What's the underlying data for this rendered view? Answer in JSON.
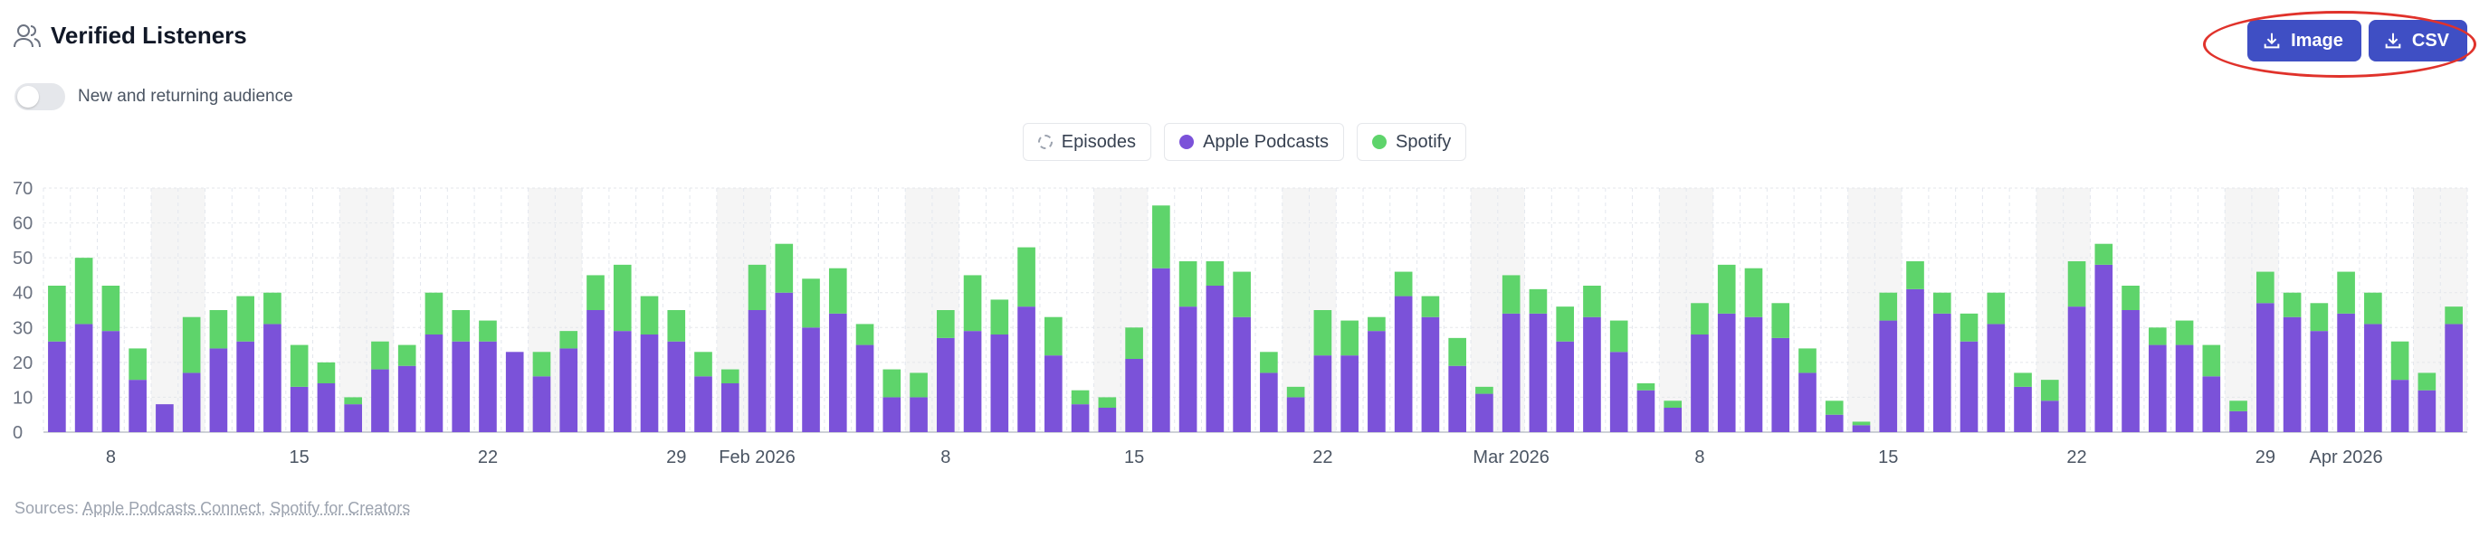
{
  "header": {
    "title": "Verified Listeners",
    "icon": "users-icon"
  },
  "actions": {
    "image_label": "Image",
    "csv_label": "CSV"
  },
  "toggle": {
    "label": "New and returning audience",
    "on": false
  },
  "legend": [
    {
      "label": "Episodes",
      "style": "dashed"
    },
    {
      "label": "Apple Podcasts",
      "color": "#7b52d9"
    },
    {
      "label": "Spotify",
      "color": "#5ed46b"
    }
  ],
  "sources": {
    "prefix": "Sources:",
    "links": [
      "Apple Podcasts Connect",
      "Spotify for Creators"
    ]
  },
  "colors": {
    "apple": "#7b52d9",
    "spotify": "#5ed46b",
    "weekend": "#f5f5f5",
    "accent": "#3f4fc4"
  },
  "chart_data": {
    "type": "bar",
    "stacked": true,
    "ylim": [
      0,
      70
    ],
    "yticks": [
      0,
      10,
      20,
      30,
      40,
      50,
      60,
      70
    ],
    "x_start": "2026-01-06",
    "x_ticks": [
      {
        "index": 2,
        "label": "8"
      },
      {
        "index": 9,
        "label": "15"
      },
      {
        "index": 16,
        "label": "22"
      },
      {
        "index": 23,
        "label": "29"
      },
      {
        "index": 26,
        "label": "Feb 2026"
      },
      {
        "index": 33,
        "label": "8"
      },
      {
        "index": 40,
        "label": "15"
      },
      {
        "index": 47,
        "label": "22"
      },
      {
        "index": 54,
        "label": "Mar 2026"
      },
      {
        "index": 61,
        "label": "8"
      },
      {
        "index": 68,
        "label": "15"
      },
      {
        "index": 75,
        "label": "22"
      },
      {
        "index": 82,
        "label": "29"
      },
      {
        "index": 85,
        "label": "Apr 2026"
      }
    ],
    "series": [
      {
        "name": "Apple Podcasts",
        "values": [
          26,
          31,
          29,
          15,
          8,
          17,
          24,
          26,
          31,
          13,
          14,
          8,
          18,
          19,
          28,
          26,
          26,
          23,
          16,
          24,
          35,
          29,
          28,
          26,
          16,
          14,
          35,
          40,
          30,
          34,
          25,
          10,
          10,
          27,
          29,
          28,
          36,
          22,
          8,
          7,
          21,
          47,
          36,
          42,
          33,
          17,
          10,
          22,
          22,
          29,
          39,
          33,
          19,
          11,
          34,
          34,
          26,
          33,
          23,
          12,
          7,
          28,
          34,
          33,
          27,
          17,
          5,
          2,
          32,
          41,
          34,
          26,
          31,
          13,
          9,
          36,
          48,
          35,
          25,
          25,
          16,
          6,
          37,
          33,
          29,
          34,
          31,
          15,
          12,
          31
        ]
      },
      {
        "name": "Spotify",
        "values": [
          16,
          19,
          13,
          9,
          0,
          16,
          11,
          13,
          9,
          12,
          6,
          2,
          8,
          6,
          12,
          9,
          6,
          0,
          7,
          5,
          10,
          19,
          11,
          9,
          7,
          4,
          13,
          14,
          14,
          13,
          6,
          8,
          7,
          8,
          16,
          10,
          17,
          11,
          4,
          3,
          9,
          18,
          13,
          7,
          13,
          6,
          3,
          13,
          10,
          4,
          7,
          6,
          8,
          2,
          11,
          7,
          10,
          9,
          9,
          2,
          2,
          9,
          14,
          14,
          10,
          7,
          4,
          1,
          8,
          8,
          6,
          8,
          9,
          4,
          6,
          13,
          6,
          7,
          5,
          7,
          9,
          3,
          9,
          7,
          8,
          12,
          9,
          11,
          5,
          5
        ]
      }
    ]
  }
}
